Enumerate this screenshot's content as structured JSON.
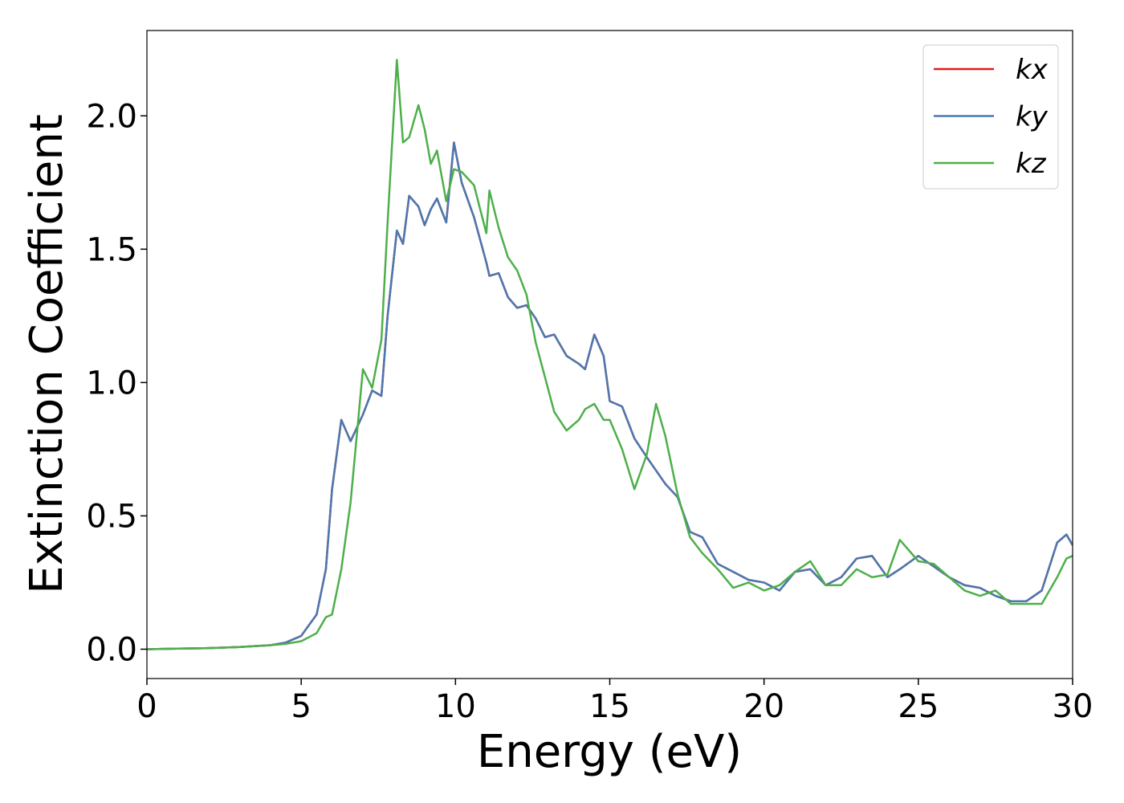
{
  "chart_data": {
    "type": "line",
    "xlabel": "Energy (eV)",
    "ylabel": "Extinction Coefficient",
    "x": [
      0,
      1,
      2,
      3,
      4,
      4.5,
      5,
      5.5,
      5.8,
      6,
      6.3,
      6.6,
      7,
      7.3,
      7.6,
      7.8,
      8.1,
      8.3,
      8.5,
      8.8,
      9,
      9.2,
      9.4,
      9.7,
      9.95,
      10.2,
      10.6,
      11,
      11.1,
      11.4,
      11.7,
      12,
      12.3,
      12.6,
      12.9,
      13.2,
      13.6,
      14,
      14.2,
      14.5,
      14.8,
      15,
      15.4,
      15.8,
      16.2,
      16.5,
      16.8,
      17.2,
      17.6,
      18,
      18.5,
      19,
      19.5,
      20,
      20.5,
      21,
      21.5,
      22,
      22.5,
      23,
      23.5,
      24,
      24.4,
      25,
      25.5,
      26,
      26.5,
      27,
      27.5,
      28,
      28.5,
      29,
      29.5,
      29.8,
      30
    ],
    "series": [
      {
        "name": "kx",
        "color": "#e41a1c",
        "values": [
          0,
          0.002,
          0.004,
          0.008,
          0.015,
          0.025,
          0.05,
          0.13,
          0.3,
          0.6,
          0.86,
          0.78,
          0.88,
          0.97,
          0.95,
          1.25,
          1.57,
          1.52,
          1.7,
          1.66,
          1.59,
          1.65,
          1.69,
          1.6,
          1.9,
          1.75,
          1.62,
          1.45,
          1.4,
          1.41,
          1.32,
          1.28,
          1.29,
          1.24,
          1.17,
          1.18,
          1.1,
          1.07,
          1.05,
          1.18,
          1.1,
          0.93,
          0.91,
          0.79,
          0.72,
          0.67,
          0.62,
          0.57,
          0.44,
          0.42,
          0.32,
          0.29,
          0.26,
          0.25,
          0.22,
          0.29,
          0.3,
          0.24,
          0.27,
          0.34,
          0.35,
          0.27,
          0.3,
          0.35,
          0.31,
          0.27,
          0.24,
          0.23,
          0.2,
          0.18,
          0.18,
          0.22,
          0.4,
          0.43,
          0.39
        ]
      },
      {
        "name": "ky",
        "color": "#4a78b0",
        "values": [
          0,
          0.002,
          0.004,
          0.008,
          0.015,
          0.025,
          0.05,
          0.13,
          0.3,
          0.6,
          0.86,
          0.78,
          0.88,
          0.97,
          0.95,
          1.25,
          1.57,
          1.52,
          1.7,
          1.66,
          1.59,
          1.65,
          1.69,
          1.6,
          1.9,
          1.75,
          1.62,
          1.45,
          1.4,
          1.41,
          1.32,
          1.28,
          1.29,
          1.24,
          1.17,
          1.18,
          1.1,
          1.07,
          1.05,
          1.18,
          1.1,
          0.93,
          0.91,
          0.79,
          0.72,
          0.67,
          0.62,
          0.57,
          0.44,
          0.42,
          0.32,
          0.29,
          0.26,
          0.25,
          0.22,
          0.29,
          0.3,
          0.24,
          0.27,
          0.34,
          0.35,
          0.27,
          0.3,
          0.35,
          0.31,
          0.27,
          0.24,
          0.23,
          0.2,
          0.18,
          0.18,
          0.22,
          0.4,
          0.43,
          0.39
        ]
      },
      {
        "name": "kz",
        "color": "#4daf4a",
        "values": [
          0,
          0.002,
          0.004,
          0.008,
          0.015,
          0.02,
          0.03,
          0.06,
          0.12,
          0.13,
          0.3,
          0.55,
          1.05,
          0.98,
          1.16,
          1.6,
          2.21,
          1.9,
          1.92,
          2.04,
          1.95,
          1.82,
          1.87,
          1.68,
          1.8,
          1.79,
          1.74,
          1.56,
          1.72,
          1.58,
          1.47,
          1.42,
          1.33,
          1.15,
          1.02,
          0.89,
          0.82,
          0.86,
          0.9,
          0.92,
          0.86,
          0.86,
          0.75,
          0.6,
          0.73,
          0.92,
          0.8,
          0.58,
          0.42,
          0.36,
          0.3,
          0.23,
          0.25,
          0.22,
          0.24,
          0.29,
          0.33,
          0.24,
          0.24,
          0.3,
          0.27,
          0.28,
          0.41,
          0.33,
          0.32,
          0.27,
          0.22,
          0.2,
          0.22,
          0.17,
          0.17,
          0.17,
          0.27,
          0.34,
          0.35
        ]
      }
    ],
    "xlim": [
      0,
      30
    ],
    "xticks": [
      0,
      5,
      10,
      15,
      20,
      25,
      30
    ],
    "ylim": [
      -0.11,
      2.32
    ],
    "yticks": [
      {
        "value": 0,
        "label": "0.0"
      },
      0.5,
      {
        "value": 1,
        "label": "1.0"
      },
      1.5,
      {
        "value": 2,
        "label": "2.0"
      }
    ],
    "legend": "upper right"
  }
}
